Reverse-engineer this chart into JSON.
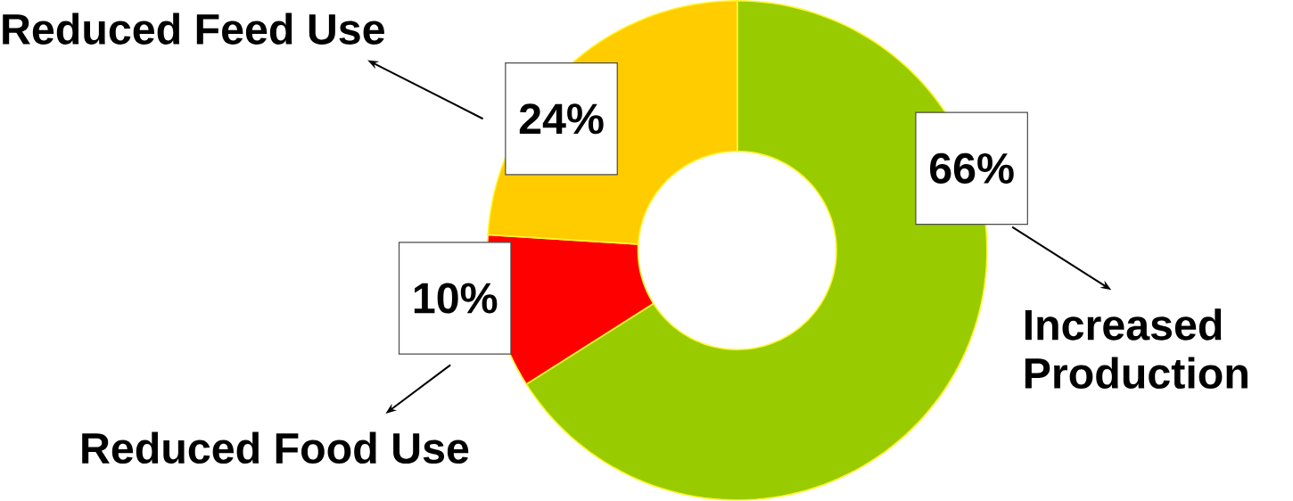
{
  "chart_data": {
    "type": "donut",
    "categories": [
      "Increased Production",
      "Reduced Food Use",
      "Reduced Feed Use"
    ],
    "values": [
      66,
      10,
      24
    ],
    "colors": [
      "#99cc00",
      "#ff0000",
      "#ffcc00"
    ],
    "value_labels": [
      "66%",
      "10%",
      "24%"
    ]
  }
}
